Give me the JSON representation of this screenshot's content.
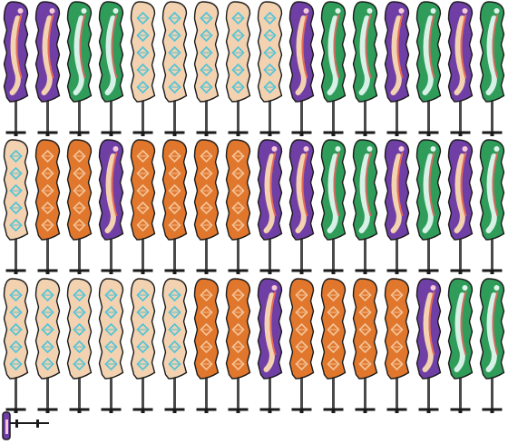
{
  "sheet": {
    "palette": {
      "purple": {
        "fill": "#6f3fa6",
        "light": "#f2d2b0",
        "stripe": "#e46a55",
        "accent": "#f6c9d8"
      },
      "green": {
        "fill": "#2f9c5a",
        "light": "#d7f1e7",
        "stripe": "#d26a5f",
        "accent": "#dff3ea"
      },
      "tan": {
        "fill": "#f2d2b0",
        "light": "#f2d2b0",
        "stripe": "#f2d2b0",
        "accent": "#4cc3d9"
      },
      "orange": {
        "fill": "#e0772d",
        "light": "#e0772d",
        "stripe": "#f5c59a",
        "accent": "#f6d2b0"
      },
      "pole": "#4a4a4a",
      "outline": "#1b1b1b",
      "pink": "#f2c8d8"
    },
    "rows": [
      [
        "purple",
        "purple",
        "green",
        "green",
        "tan",
        "tan",
        "tan",
        "tan",
        "tan",
        "purple",
        "green",
        "green",
        "purple",
        "green",
        "purple",
        "green"
      ],
      [
        "tan",
        "orange",
        "orange",
        "purple",
        "orange",
        "orange",
        "orange",
        "orange",
        "purple",
        "purple",
        "green",
        "green",
        "purple",
        "green",
        "purple",
        "green"
      ],
      [
        "tan",
        "tan",
        "tan",
        "tan",
        "tan",
        "tan",
        "orange",
        "orange",
        "purple",
        "orange",
        "orange",
        "orange",
        "orange",
        "purple",
        "green",
        "green"
      ]
    ],
    "stray_sprite": {
      "icon": "small-banner-icon",
      "color": "purple"
    }
  }
}
